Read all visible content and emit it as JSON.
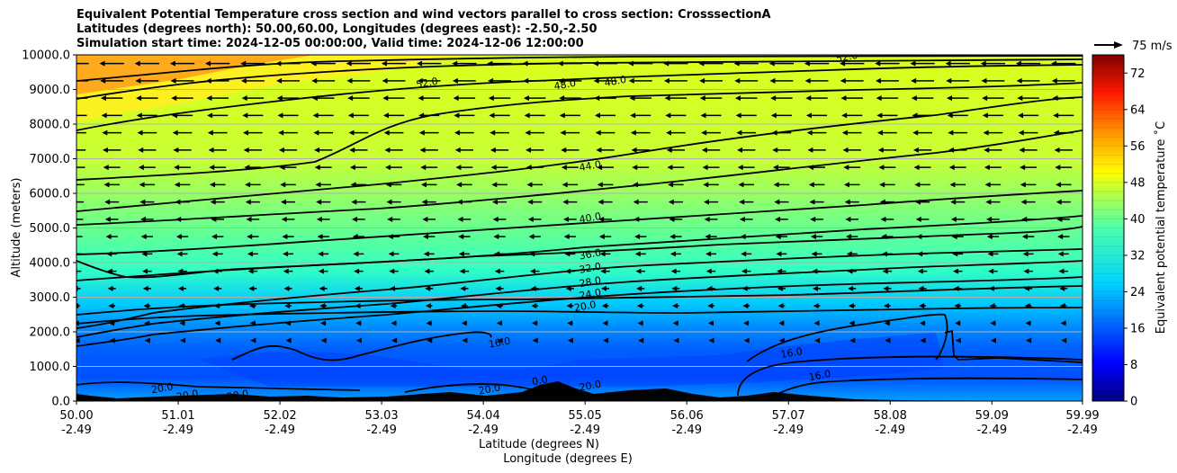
{
  "titles": [
    "Equivalent Potential Temperature cross section and wind vectors parallel to cross section: CrosssectionA",
    "Latitudes (degrees north): 50.00,60.00, Longitudes (degrees east): -2.50,-2.50",
    "Simulation start time: 2024-12-05 00:00:00, Valid time: 2024-12-06 12:00:00"
  ],
  "chart_data": {
    "type": "contour",
    "ylabel": "Altitude (meters)",
    "xlabel_lines": [
      "Latitude (degrees N)",
      "Longitude (degrees E)"
    ],
    "y_ticks": [
      "0.0",
      "1000.0",
      "2000.0",
      "3000.0",
      "4000.0",
      "5000.0",
      "6000.0",
      "7000.0",
      "8000.0",
      "9000.0",
      "10000.0"
    ],
    "ylim": [
      0,
      10000
    ],
    "xlim": [
      50.0,
      59.99
    ],
    "x_ticks_lat": [
      "50.00",
      "51.01",
      "52.02",
      "53.03",
      "54.04",
      "55.05",
      "56.06",
      "57.07",
      "58.08",
      "59.09",
      "59.99"
    ],
    "x_ticks_lon": [
      "-2.49",
      "-2.49",
      "-2.49",
      "-2.49",
      "-2.49",
      "-2.49",
      "-2.49",
      "-2.49",
      "-2.49",
      "-2.49",
      "-2.49"
    ],
    "grid": "horizontal",
    "colorbar": {
      "label": "Equivalent potential temperature ˚C",
      "range": [
        0,
        76
      ],
      "ticks": [
        "0",
        "8",
        "16",
        "24",
        "32",
        "40",
        "48",
        "56",
        "64",
        "72"
      ]
    },
    "quiver_key": {
      "label": "75 m/s",
      "position": "top-right"
    },
    "contour_labels": [
      {
        "text": "52.0",
        "lat": 53.48,
        "alt": 9200
      },
      {
        "text": "52.0",
        "lat": 57.65,
        "alt": 9950
      },
      {
        "text": "48.0",
        "lat": 54.85,
        "alt": 9150
      },
      {
        "text": "48.0",
        "lat": 55.35,
        "alt": 9250
      },
      {
        "text": "44.0",
        "lat": 55.1,
        "alt": 6800
      },
      {
        "text": "40.0",
        "lat": 55.1,
        "alt": 5300
      },
      {
        "text": "36.0",
        "lat": 55.1,
        "alt": 4250
      },
      {
        "text": "32.0",
        "lat": 55.1,
        "alt": 3850
      },
      {
        "text": "28.0",
        "lat": 55.1,
        "alt": 3450
      },
      {
        "text": "24.0",
        "lat": 55.1,
        "alt": 3100
      },
      {
        "text": "20.0",
        "lat": 55.05,
        "alt": 2750
      },
      {
        "text": "16.0",
        "lat": 54.2,
        "alt": 1700
      },
      {
        "text": "16.0",
        "lat": 57.1,
        "alt": 1400
      },
      {
        "text": "16.0",
        "lat": 57.38,
        "alt": 750
      },
      {
        "text": "0.0",
        "lat": 54.6,
        "alt": 600
      },
      {
        "text": "20.0",
        "lat": 50.85,
        "alt": 380
      },
      {
        "text": "20.0",
        "lat": 51.1,
        "alt": 180
      },
      {
        "text": "20.0",
        "lat": 51.6,
        "alt": 180
      },
      {
        "text": "20.0",
        "lat": 55.1,
        "alt": 450
      },
      {
        "text": "20.0",
        "lat": 54.1,
        "alt": 350
      }
    ]
  }
}
